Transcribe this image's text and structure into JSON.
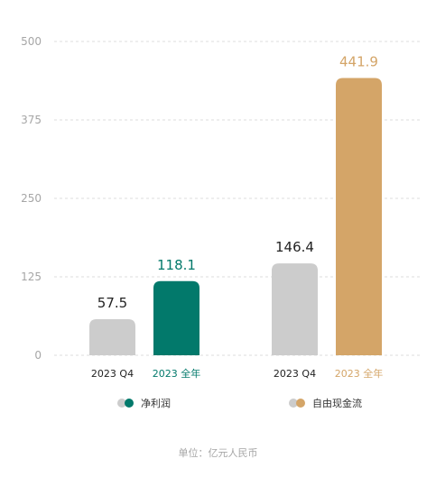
{
  "chart_data": {
    "type": "bar",
    "ylim": [
      0,
      500
    ],
    "yticks": [
      0,
      125,
      250,
      375,
      500
    ],
    "grid": true,
    "groups": [
      {
        "legend": "净利润",
        "accent_color": "#02796b",
        "bars": [
          {
            "label": "2023 Q4",
            "value": 57.5,
            "value_label": "57.5",
            "color": "#cccccc",
            "label_color": "#222222"
          },
          {
            "label": "2023 全年",
            "value": 118.1,
            "value_label": "118.1",
            "color": "#02796b",
            "label_color": "#02796b"
          }
        ]
      },
      {
        "legend": "自由现金流",
        "accent_color": "#d4a568",
        "bars": [
          {
            "label": "2023 Q4",
            "value": 146.4,
            "value_label": "146.4",
            "color": "#cccccc",
            "label_color": "#222222"
          },
          {
            "label": "2023 全年",
            "value": 441.9,
            "value_label": "441.9",
            "color": "#d4a568",
            "label_color": "#d4a568"
          }
        ]
      }
    ],
    "legend_placement": "bottom",
    "note": "单位：亿元人民币"
  },
  "colors": {
    "grid": "#dcdcdc",
    "neutral_bar": "#cccccc"
  }
}
